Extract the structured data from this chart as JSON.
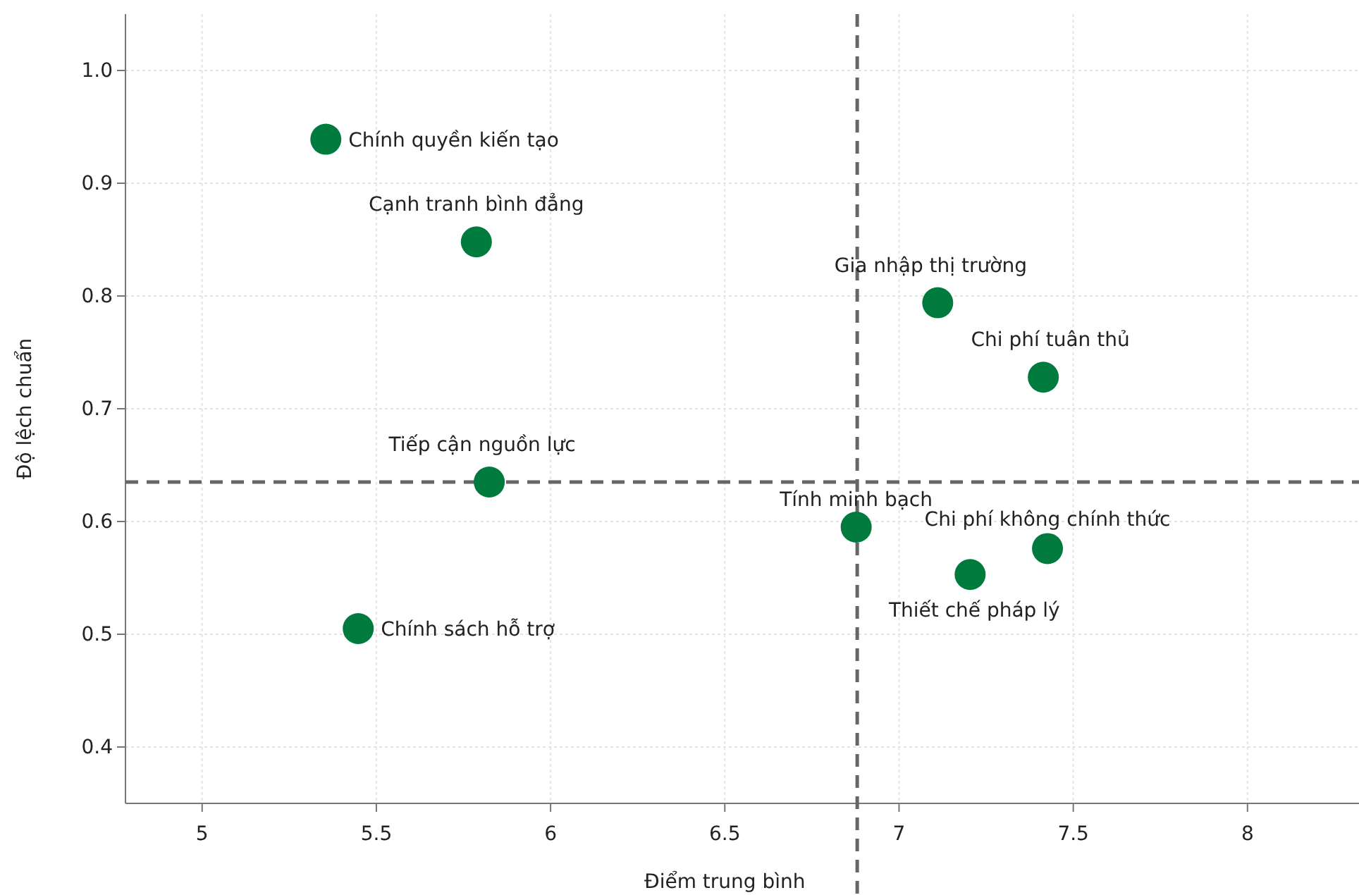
{
  "chart_data": {
    "type": "scatter",
    "xlabel": "Điểm trung bình",
    "ylabel": "Độ lệch chuẩn",
    "x": [
      5.355,
      5.787,
      7.111,
      7.414,
      5.824,
      6.877,
      7.426,
      7.204,
      5.448
    ],
    "values": [
      0.939,
      0.848,
      0.794,
      0.728,
      0.635,
      0.595,
      0.576,
      0.553,
      0.505
    ],
    "color": "#007a3d",
    "marker": "circle",
    "xlim": [
      4.78,
      8.32
    ],
    "xticks": [
      5,
      5.5,
      6,
      6.5,
      7,
      7.5,
      8
    ],
    "ylim": [
      0.35,
      1.05
    ],
    "yticks": [
      0.4,
      0.5,
      0.6,
      0.7,
      0.8,
      0.9,
      {
        "value": 1,
        "label": "1.0"
      }
    ],
    "grid": true,
    "ref_lines": [
      {
        "axis": "x",
        "value": 6.88,
        "color": "#666666",
        "line_style": "dashed"
      },
      {
        "axis": "y",
        "value": 0.635,
        "color": "#666666",
        "line_style": "dashed"
      }
    ],
    "annotations": [
      {
        "text": "Chính quyền kiến tạo",
        "x": 5.355,
        "y": 0.939
      },
      {
        "text": "Cạnh tranh bình đẳng",
        "x": 5.787,
        "y": 0.848
      },
      {
        "text": "Gia nhập thị trường",
        "x": 7.111,
        "y": 0.794
      },
      {
        "text": "Chi phí tuân thủ",
        "x": 7.414,
        "y": 0.728
      },
      {
        "text": "Tiếp cận nguồn lực",
        "x": 5.824,
        "y": 0.635
      },
      {
        "text": "Tính minh bạch",
        "x": 6.877,
        "y": 0.595
      },
      {
        "text": "Chi phí không chính thức",
        "x": 7.426,
        "y": 0.576
      },
      {
        "text": "Thiết chế pháp lý",
        "x": 7.204,
        "y": 0.553
      },
      {
        "text": "Chính sách hỗ trợ",
        "x": 5.448,
        "y": 0.505
      }
    ]
  }
}
